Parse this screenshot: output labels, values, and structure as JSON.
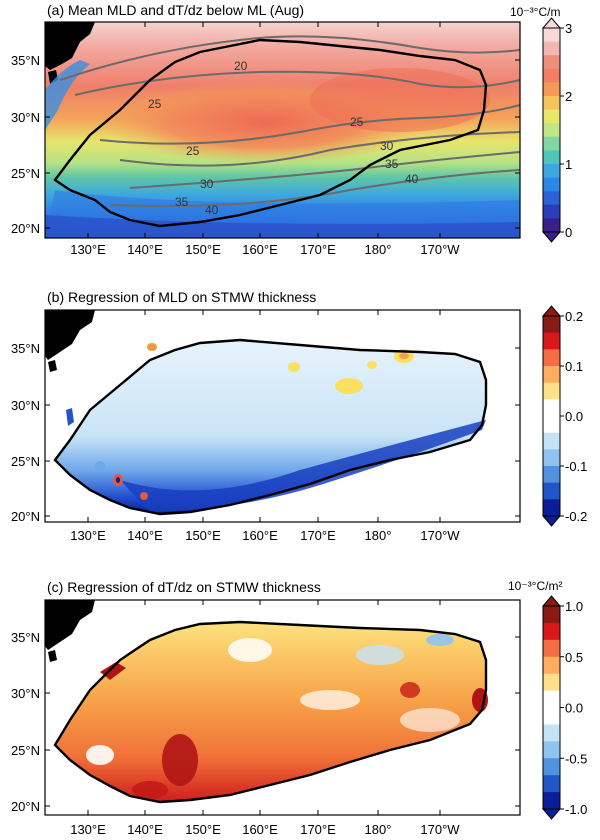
{
  "panels": [
    {
      "id": "a",
      "title": "(a) Mean MLD and dT/dz below ML (Aug)",
      "unit": "10⁻³°C/m",
      "colorbar": {
        "ticks": [
          "3",
          "2",
          "1",
          "0"
        ],
        "colors": [
          "#f7d9d9",
          "#f2b7b3",
          "#ee8f7e",
          "#f27f63",
          "#f49a55",
          "#f6c45c",
          "#e9e76a",
          "#bfe784",
          "#82d6a1",
          "#4fc6b9",
          "#3fa7e0",
          "#2e86e8",
          "#2a63d6",
          "#2a3fb6",
          "#3a1f8f"
        ]
      },
      "contour_labels": [
        "20",
        "25",
        "25",
        "25",
        "30",
        "30",
        "35",
        "35",
        "40",
        "40"
      ]
    },
    {
      "id": "b",
      "title": "(b) Regression of MLD on STMW thickness",
      "unit": "",
      "colorbar": {
        "ticks": [
          "0.2",
          "0.1",
          "0.0",
          "-0.1",
          "-0.2"
        ],
        "colors": [
          "#8c1a14",
          "#d7191c",
          "#f46d43",
          "#fdae61",
          "#fee08b",
          "#ffffff",
          "#ffffff",
          "#c6e2f7",
          "#8ec4ee",
          "#4f92e0",
          "#2156c8",
          "#0a1e9a"
        ]
      }
    },
    {
      "id": "c",
      "title": "(c) Regression of dT/dz on STMW thickness",
      "unit": "10⁻³°C/m²",
      "colorbar": {
        "ticks": [
          "1.0",
          "0.5",
          "0.0",
          "-0.5",
          "-1.0"
        ],
        "colors": [
          "#8c1a14",
          "#d7191c",
          "#f46d43",
          "#fdae61",
          "#fee08b",
          "#ffffff",
          "#ffffff",
          "#c6e2f7",
          "#8ec4ee",
          "#4f92e0",
          "#2156c8",
          "#0a1e9a"
        ]
      }
    }
  ],
  "lat_labels": [
    "35°N",
    "30°N",
    "25°N",
    "20°N"
  ],
  "lon_labels": [
    "130°E",
    "140°E",
    "150°E",
    "160°E",
    "170°E",
    "180°",
    "170°W"
  ]
}
